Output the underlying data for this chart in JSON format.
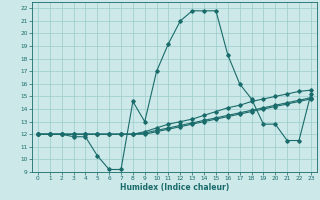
{
  "xlabel": "Humidex (Indice chaleur)",
  "xlim": [
    -0.5,
    23.5
  ],
  "ylim": [
    9,
    22.5
  ],
  "yticks": [
    9,
    10,
    11,
    12,
    13,
    14,
    15,
    16,
    17,
    18,
    19,
    20,
    21,
    22
  ],
  "xticks": [
    0,
    1,
    2,
    3,
    4,
    5,
    6,
    7,
    8,
    9,
    10,
    11,
    12,
    13,
    14,
    15,
    16,
    17,
    18,
    19,
    20,
    21,
    22,
    23
  ],
  "bg_color": "#cce8e8",
  "line_color": "#1a6b6b",
  "grid_color": "#99cccc",
  "line1_y": [
    12,
    12,
    12,
    11.8,
    11.8,
    10.3,
    9.2,
    9.2,
    14.6,
    13.0,
    17.0,
    19.2,
    21.0,
    21.8,
    21.8,
    21.8,
    18.3,
    16.0,
    14.8,
    12.8,
    12.8,
    11.5,
    11.5,
    15.2
  ],
  "line2_y": [
    12,
    12,
    12,
    12,
    12,
    12,
    12,
    12,
    12,
    12.2,
    12.5,
    12.8,
    13.0,
    13.2,
    13.5,
    13.8,
    14.1,
    14.3,
    14.6,
    14.8,
    15.0,
    15.2,
    15.4,
    15.5
  ],
  "line3_y": [
    12,
    12,
    12,
    12,
    12,
    12,
    12,
    12,
    12,
    12.1,
    12.3,
    12.5,
    12.7,
    12.9,
    13.1,
    13.3,
    13.5,
    13.7,
    13.9,
    14.1,
    14.3,
    14.5,
    14.7,
    14.9
  ],
  "line4_y": [
    12,
    12,
    12,
    12,
    12,
    12,
    12,
    12,
    12,
    12.0,
    12.2,
    12.4,
    12.6,
    12.8,
    13.0,
    13.2,
    13.4,
    13.6,
    13.8,
    14.0,
    14.2,
    14.4,
    14.6,
    14.8
  ]
}
